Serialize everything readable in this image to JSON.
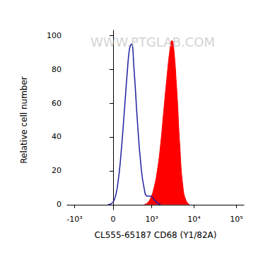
{
  "chart_data": {
    "type": "line",
    "x_label": "CL555-65187 CD68 (Y1/82A)",
    "y_label": "Relative cell number",
    "annotations": [
      "WWW.PTGLAB.COM"
    ],
    "xlim": [
      -1500,
      150000
    ],
    "xticks": [
      {
        "value": -1000,
        "label": "-10³"
      },
      0,
      {
        "value": 1000,
        "label": "10³"
      },
      {
        "value": 10000,
        "label": "10⁴"
      },
      {
        "value": 100000,
        "label": "10⁵"
      }
    ],
    "ylim": [
      -3,
      103
    ],
    "yticks": [
      0,
      20,
      40,
      60,
      80,
      100
    ],
    "grid": false,
    "series": [
      {
        "type": "line",
        "color": "#1f1fa0",
        "x": [
          -72,
          -27,
          18,
          63,
          110,
          161,
          215,
          252,
          291,
          348,
          430,
          528,
          644,
          781,
          943,
          1134,
          1358,
          1620
        ],
        "values": [
          0,
          0.5,
          3,
          12,
          30,
          55,
          80,
          92,
          95,
          80,
          50,
          25,
          10,
          5,
          5,
          3,
          1,
          0
        ]
      },
      {
        "type": "area",
        "color": "#ff0000",
        "x": [
          644,
          781,
          943,
          1134,
          1358,
          1620,
          1927,
          2297,
          2727,
          3028,
          3260,
          3890,
          4640,
          5540,
          6620,
          7900
        ],
        "values": [
          0,
          1,
          4,
          10,
          20,
          35,
          55,
          75,
          92,
          97,
          95,
          70,
          35,
          10,
          2,
          0
        ]
      }
    ]
  }
}
